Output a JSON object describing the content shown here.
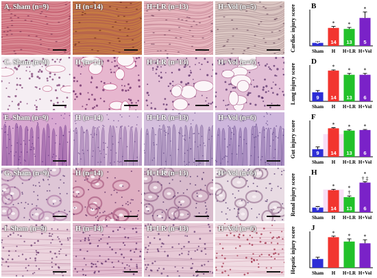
{
  "rows": [
    {
      "organ": "heart",
      "tissue": "heart",
      "panels": [
        {
          "label": "A. Sham (n=9)",
          "colors": {
            "base": "#d98a93",
            "stroke": "#c2566a",
            "dot": "#7b3050"
          }
        },
        {
          "label": "H (n=14)",
          "colors": {
            "base": "#b8664a",
            "stroke": "#cf8a3f",
            "dot": "#6b2a18"
          }
        },
        {
          "label": "H+LR (n=13)",
          "colors": {
            "base": "#e7b7bf",
            "stroke": "#c88898",
            "dot": "#7a4a62"
          }
        },
        {
          "label": "H+Vol (n=5)",
          "colors": {
            "base": "#dbc6c2",
            "stroke": "#b79c9f",
            "dot": "#6e4d5e"
          }
        }
      ]
    },
    {
      "organ": "lung",
      "tissue": "lung",
      "panels": [
        {
          "label": "C. Sham (n=9)",
          "colors": {
            "base": "#f5eef3",
            "stroke": "#d08aa8",
            "dot": "#7a3a70"
          }
        },
        {
          "label": "H (n=14)",
          "colors": {
            "base": "#e7b7cf",
            "stroke": "#c96a96",
            "dot": "#6a2a66"
          }
        },
        {
          "label": "H+LR (n=13)",
          "colors": {
            "base": "#e5c2d7",
            "stroke": "#bf7fa3",
            "dot": "#5c2d6a"
          }
        },
        {
          "label": "H+Vol (n=6)",
          "colors": {
            "base": "#e2bed6",
            "stroke": "#b97aa0",
            "dot": "#58306a"
          }
        }
      ]
    },
    {
      "organ": "gut",
      "tissue": "gut",
      "panels": [
        {
          "label": "E. Sham (n=9)",
          "colors": {
            "base": "#d9a9d2",
            "stroke": "#8a4c9c",
            "dot": "#5a2a7a"
          }
        },
        {
          "label": "H (n=14)",
          "colors": {
            "base": "#dcc2de",
            "stroke": "#9c73ad",
            "dot": "#5e3a7e"
          }
        },
        {
          "label": "H+LR (n=13)",
          "colors": {
            "base": "#d5c0de",
            "stroke": "#9479ac",
            "dot": "#55397a"
          }
        },
        {
          "label": "H+Vol (n=6)",
          "colors": {
            "base": "#ceb7dd",
            "stroke": "#8a6aa9",
            "dot": "#4e3478"
          }
        }
      ]
    },
    {
      "organ": "kidney",
      "tissue": "kidney",
      "panels": [
        {
          "label": "G. Sham (n=9)",
          "colors": {
            "base": "#dec6d6",
            "stroke": "#b98ab0",
            "dot": "#5a3a72"
          }
        },
        {
          "label": "H (n=14)",
          "colors": {
            "base": "#dfafc2",
            "stroke": "#b46c8e",
            "dot": "#5c2a62"
          }
        },
        {
          "label": "H+LR (n=13)",
          "colors": {
            "base": "#d8bbcc",
            "stroke": "#a77a9b",
            "dot": "#4f2f66"
          }
        },
        {
          "label": "H+Vol (n=6)",
          "colors": {
            "base": "#e8dbe3",
            "stroke": "#a98aa3",
            "dot": "#553a6e"
          }
        }
      ]
    },
    {
      "organ": "liver",
      "tissue": "liver",
      "panels": [
        {
          "label": "I. Sham (n=9)",
          "colors": {
            "base": "#ecd4de",
            "stroke": "#c99bb2",
            "dot": "#6a3a6e"
          }
        },
        {
          "label": "H (n=14)",
          "colors": {
            "base": "#e3bcd0",
            "stroke": "#bd82a2",
            "dot": "#5e2e68"
          }
        },
        {
          "label": "H+LR (n=13)",
          "colors": {
            "base": "#e7c9d6",
            "stroke": "#c39ab0",
            "dot": "#643a70"
          }
        },
        {
          "label": "H+Vol (n=6)",
          "colors": {
            "base": "#f0dbe2",
            "stroke": "#cf9aae",
            "dot": "#a0304a"
          }
        }
      ]
    }
  ],
  "bar_colors": {
    "sham": "#2e2ed6",
    "h": "#f2352f",
    "hlr": "#22c12a",
    "hvol": "#7a22c8",
    "highlight": "#f3c2ee"
  },
  "chart_data": [
    {
      "type": "bar",
      "panel_letter": "B",
      "ylabel": "Cardiac injury score",
      "categories": [
        "Sham",
        "H",
        "H+LR",
        "H+Vol"
      ],
      "values": [
        0.3,
        1.8,
        1.7,
        2.8
      ],
      "errors": [
        0.15,
        0.15,
        0.15,
        0.6
      ],
      "n_labels": [
        "9",
        "14",
        "13",
        "5"
      ],
      "significance": [
        "",
        "*",
        "*",
        "*"
      ],
      "ylim": [
        0,
        3.5
      ]
    },
    {
      "type": "bar",
      "panel_letter": "D",
      "ylabel": "Lung injury score",
      "categories": [
        "Sham",
        "H",
        "H+LR",
        "H+Vol"
      ],
      "values": [
        1.3,
        4.4,
        3.8,
        3.8
      ],
      "errors": [
        0.25,
        0.1,
        0.2,
        0.2
      ],
      "n_labels": [
        "9",
        "14",
        "13",
        "6"
      ],
      "significance": [
        "",
        "*",
        "*",
        "*"
      ],
      "ylim": [
        0,
        5
      ]
    },
    {
      "type": "bar",
      "panel_letter": "F",
      "ylabel": "Gut injury score",
      "categories": [
        "Sham",
        "H",
        "H+LR",
        "H+Vol"
      ],
      "values": [
        1.3,
        4.9,
        4.5,
        4.6
      ],
      "errors": [
        0.4,
        0.1,
        0.12,
        0.1
      ],
      "n_labels": [
        "9",
        "14",
        "13",
        "6"
      ],
      "significance": [
        "",
        "*",
        "*",
        "*"
      ],
      "ylim": [
        0,
        6
      ]
    },
    {
      "type": "bar",
      "panel_letter": "H",
      "ylabel": "Renal injury score",
      "categories": [
        "Sham",
        "H",
        "H+LR",
        "H+Vol"
      ],
      "values": [
        0.8,
        3.8,
        2.6,
        5.1
      ],
      "errors": [
        0.2,
        0.15,
        0.2,
        0.15
      ],
      "n_labels": [
        "9",
        "14",
        "13",
        "6"
      ],
      "significance": [
        "",
        "*",
        "*\n†",
        "*\n† ‡"
      ],
      "ylim": [
        0,
        6
      ]
    },
    {
      "type": "bar",
      "panel_letter": "J",
      "ylabel": "Hepatic injury score",
      "categories": [
        "Sham",
        "H",
        "H+LR",
        "H+Vol"
      ],
      "values": [
        1.0,
        3.5,
        3.0,
        2.8
      ],
      "errors": [
        0.2,
        0.12,
        0.3,
        0.4
      ],
      "n_labels": [
        "",
        "",
        "",
        ""
      ],
      "significance": [
        "",
        "*",
        "*",
        "*"
      ],
      "ylim": [
        0,
        4
      ]
    }
  ]
}
